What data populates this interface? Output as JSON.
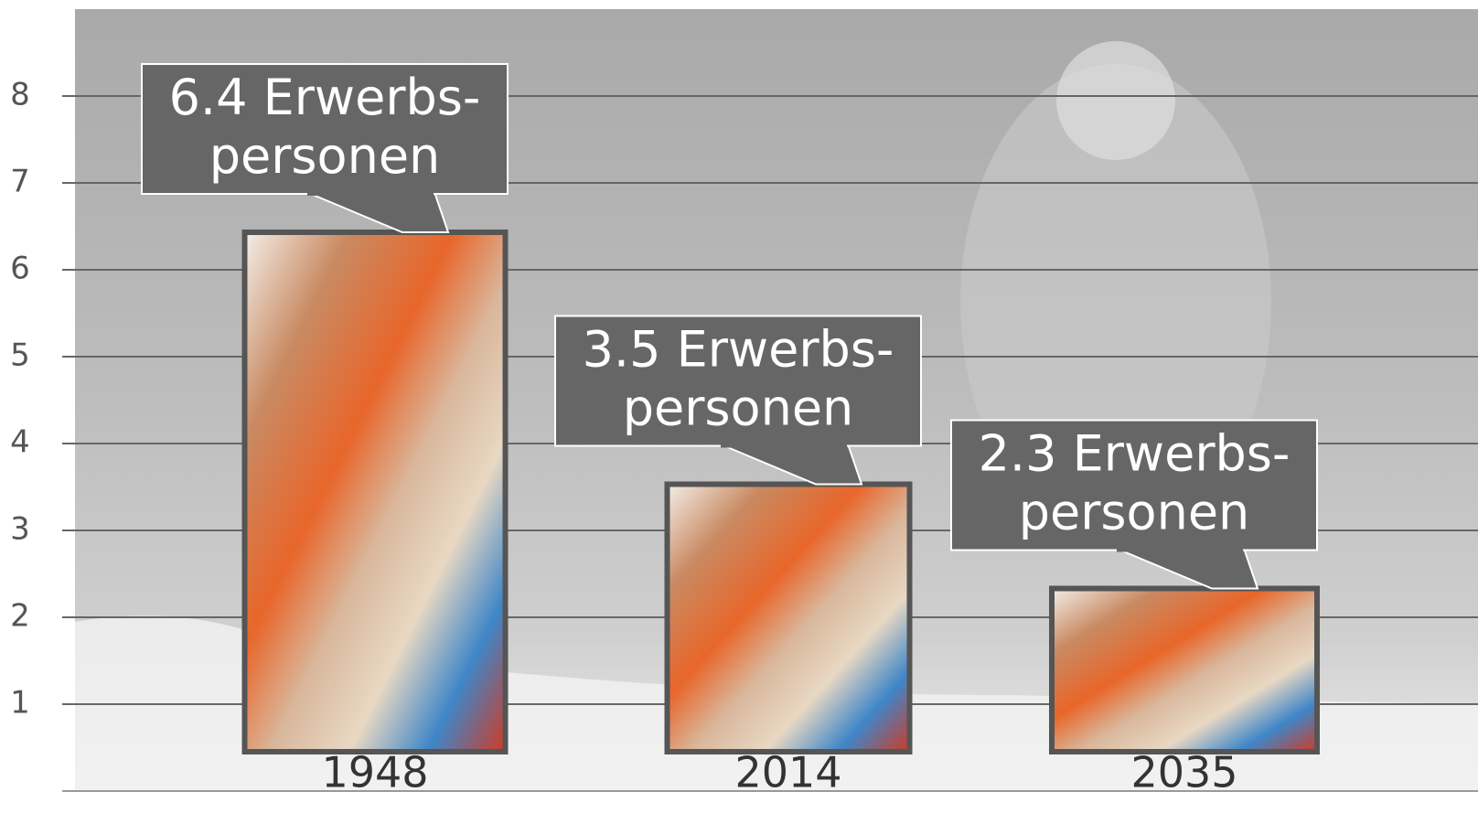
{
  "chart_data": {
    "type": "bar",
    "categories": [
      "1948",
      "2014",
      "2035"
    ],
    "values": [
      6.4,
      3.5,
      2.3
    ],
    "value_labels": [
      [
        "6.4 Erwerbs-",
        "personen"
      ],
      [
        "3.5 Erwerbs-",
        "personen"
      ],
      [
        "2.3 Erwerbs-",
        "personen"
      ]
    ],
    "ylim": [
      0,
      9
    ],
    "yticks": [
      1,
      2,
      3,
      4,
      5,
      6,
      7,
      8
    ],
    "grid": true
  }
}
